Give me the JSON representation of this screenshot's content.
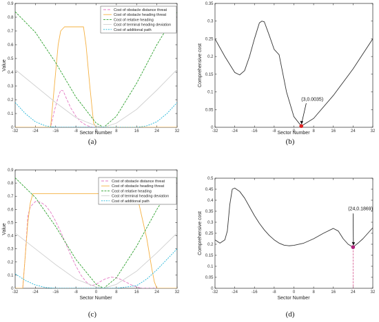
{
  "chart_data": [
    {
      "type": "line",
      "panel_label": "(a)",
      "xlabel": "Sector Number",
      "ylabel": "Value",
      "xlim": [
        -32,
        32
      ],
      "ylim": [
        0,
        0.9
      ],
      "xticks": [
        -32,
        -24,
        -16,
        -8,
        0,
        8,
        16,
        24,
        32
      ],
      "yticks": [
        0,
        0.1,
        0.2,
        0.3,
        0.4,
        0.5,
        0.6,
        0.7,
        0.8,
        0.9
      ],
      "legend_position": "top-right",
      "series": [
        {
          "name": "Cost of obstacle distance threat",
          "color": "#e377c2",
          "dash": "4,2",
          "x": [
            -32,
            -18,
            -16.5,
            -15,
            -14,
            -13,
            -12,
            -10,
            -8,
            -6,
            -4,
            -2,
            -1,
            32
          ],
          "y": [
            0,
            0,
            0.12,
            0.22,
            0.27,
            0.265,
            0.22,
            0.14,
            0.08,
            0.04,
            0.015,
            0.003,
            0,
            0
          ]
        },
        {
          "name": "Cost of obstacle heading threat",
          "color": "#f5b041",
          "dash": "",
          "x": [
            -32,
            -18,
            -16.5,
            -15,
            -14,
            -12.5,
            -11,
            -10,
            -8,
            -5,
            -4,
            -2.5,
            -1,
            0,
            32
          ],
          "y": [
            0,
            0,
            0.3,
            0.6,
            0.7,
            0.73,
            0.73,
            0.73,
            0.73,
            0.73,
            0.6,
            0.3,
            0.03,
            0,
            0
          ]
        },
        {
          "name": "Cost of relative heading",
          "color": "#2ca02c",
          "dash": "3,1.5",
          "x": [
            -32,
            -24,
            -16,
            -8,
            0,
            3,
            8,
            16,
            24,
            32
          ],
          "y": [
            0.84,
            0.69,
            0.47,
            0.22,
            0.03,
            0,
            0.08,
            0.32,
            0.6,
            0.84
          ]
        },
        {
          "name": "Cost of terminal heading deviation",
          "color": "#cfcfcf",
          "dash": "",
          "x": [
            -32,
            -24,
            -16,
            -8,
            0,
            3,
            8,
            16,
            24,
            32
          ],
          "y": [
            0.42,
            0.3,
            0.18,
            0.07,
            0.01,
            0,
            0.03,
            0.13,
            0.27,
            0.42
          ]
        },
        {
          "name": "Cost of additional path",
          "color": "#1fb4d8",
          "dash": "2,1.5",
          "x": [
            -32,
            -28,
            -24,
            -20,
            -16,
            -12,
            -8,
            0,
            8,
            16,
            20,
            24,
            28,
            32
          ],
          "y": [
            0.18,
            0.1,
            0.04,
            0.01,
            0,
            0,
            0,
            0,
            0,
            0,
            0.01,
            0.04,
            0.1,
            0.18
          ]
        }
      ]
    },
    {
      "type": "line",
      "panel_label": "(b)",
      "xlabel": "Sector Number",
      "ylabel": "Comprehensive cost",
      "xlim": [
        -32,
        32
      ],
      "ylim": [
        0,
        0.35
      ],
      "xticks": [
        -32,
        -24,
        -16,
        -8,
        0,
        8,
        16,
        24,
        32
      ],
      "yticks": [
        0,
        0.05,
        0.1,
        0.15,
        0.2,
        0.25,
        0.3,
        0.35
      ],
      "series": [
        {
          "name": "",
          "color": "#333333",
          "x": [
            -32,
            -28,
            -24,
            -22,
            -20,
            -18,
            -16,
            -14,
            -13,
            -12,
            -10,
            -8,
            -6,
            -3,
            0,
            3,
            8,
            16,
            24,
            32
          ],
          "y": [
            0.25,
            0.2,
            0.155,
            0.148,
            0.16,
            0.2,
            0.25,
            0.295,
            0.3,
            0.298,
            0.26,
            0.22,
            0.205,
            0.1,
            0.03,
            0.0035,
            0.025,
            0.09,
            0.165,
            0.25
          ]
        }
      ],
      "marker": {
        "x": 3,
        "y": 0.0035,
        "color": "#e02020"
      },
      "annotation": "(3,0.0035)"
    },
    {
      "type": "line",
      "panel_label": "(c)",
      "xlabel": "Sector Number",
      "ylabel": "Value",
      "xlim": [
        -32,
        32
      ],
      "ylim": [
        0,
        0.9
      ],
      "xticks": [
        -32,
        -24,
        -16,
        -8,
        0,
        8,
        16,
        24,
        32
      ],
      "yticks": [
        0,
        0.1,
        0.2,
        0.3,
        0.4,
        0.5,
        0.6,
        0.7,
        0.8,
        0.9
      ],
      "legend_position": "top-right",
      "series": [
        {
          "name": "Cost of obstacle distance threat",
          "color": "#e377c2",
          "dash": "4,2",
          "x": [
            -32,
            -29,
            -28,
            -27,
            -26,
            -24,
            -22,
            -20,
            -18,
            -16,
            -14,
            -12,
            -10,
            -8,
            -6,
            -4,
            -2,
            0,
            2,
            4,
            6,
            8,
            10,
            12,
            14,
            16,
            18,
            32
          ],
          "y": [
            0,
            0,
            0.25,
            0.55,
            0.62,
            0.66,
            0.655,
            0.63,
            0.58,
            0.51,
            0.43,
            0.34,
            0.25,
            0.17,
            0.1,
            0.05,
            0.02,
            0.03,
            0.055,
            0.075,
            0.085,
            0.08,
            0.065,
            0.045,
            0.025,
            0.01,
            0,
            0
          ]
        },
        {
          "name": "Cost of obstacle heading threat",
          "color": "#f5b041",
          "dash": "",
          "x": [
            -32,
            -29,
            -28,
            -27,
            -26,
            -25,
            15,
            16,
            18,
            20,
            22,
            23,
            24,
            32
          ],
          "y": [
            0,
            0,
            0.25,
            0.5,
            0.65,
            0.72,
            0.72,
            0.72,
            0.55,
            0.38,
            0.15,
            0.05,
            0,
            0
          ]
        },
        {
          "name": "Cost of relative heading",
          "color": "#2ca02c",
          "dash": "3,1.5",
          "x": [
            -32,
            -24,
            -16,
            -8,
            0,
            3,
            8,
            16,
            24,
            32
          ],
          "y": [
            0.84,
            0.69,
            0.47,
            0.22,
            0.03,
            0,
            0.08,
            0.32,
            0.6,
            0.84
          ]
        },
        {
          "name": "Cost of terminal heading deviation",
          "color": "#cfcfcf",
          "dash": "",
          "x": [
            -32,
            -24,
            -16,
            -8,
            0,
            3,
            8,
            16,
            24,
            32
          ],
          "y": [
            0.42,
            0.3,
            0.18,
            0.07,
            0.01,
            0,
            0.03,
            0.13,
            0.27,
            0.42
          ]
        },
        {
          "name": "Cost of additional path",
          "color": "#1fb4d8",
          "dash": "2,1.5",
          "x": [
            -32,
            -28,
            -24,
            -20,
            -16,
            -12,
            -8,
            0,
            8,
            16,
            20,
            24,
            28,
            32
          ],
          "y": [
            0.11,
            0.06,
            0.025,
            0.006,
            0,
            0,
            0,
            0,
            0,
            0.02,
            0.07,
            0.14,
            0.22,
            0.3
          ]
        }
      ]
    },
    {
      "type": "line",
      "panel_label": "(d)",
      "xlabel": "Sector Number",
      "ylabel": "Comprehensive cost",
      "xlim": [
        -32,
        32
      ],
      "ylim": [
        0,
        0.5
      ],
      "xticks": [
        -32,
        -24,
        -16,
        -8,
        0,
        8,
        16,
        24,
        32
      ],
      "yticks": [
        0,
        0.05,
        0.1,
        0.15,
        0.2,
        0.25,
        0.3,
        0.35,
        0.4,
        0.45,
        0.5
      ],
      "series": [
        {
          "name": "",
          "color": "#333333",
          "x": [
            -32,
            -30,
            -28,
            -27,
            -26,
            -25,
            -24,
            -22,
            -20,
            -18,
            -16,
            -14,
            -12,
            -10,
            -8,
            -6,
            -4,
            -2,
            0,
            4,
            8,
            12,
            16,
            18,
            20,
            22,
            24,
            26,
            28,
            30,
            32
          ],
          "y": [
            0.22,
            0.205,
            0.22,
            0.26,
            0.38,
            0.45,
            0.455,
            0.44,
            0.41,
            0.37,
            0.33,
            0.295,
            0.265,
            0.24,
            0.22,
            0.205,
            0.196,
            0.193,
            0.195,
            0.205,
            0.225,
            0.25,
            0.272,
            0.26,
            0.225,
            0.2,
            0.1869,
            0.205,
            0.225,
            0.25,
            0.275
          ]
        }
      ],
      "marker": {
        "x": 24,
        "y": 0.1869,
        "color": "#b0217a"
      },
      "annotation": "(24,0.1869)"
    }
  ]
}
